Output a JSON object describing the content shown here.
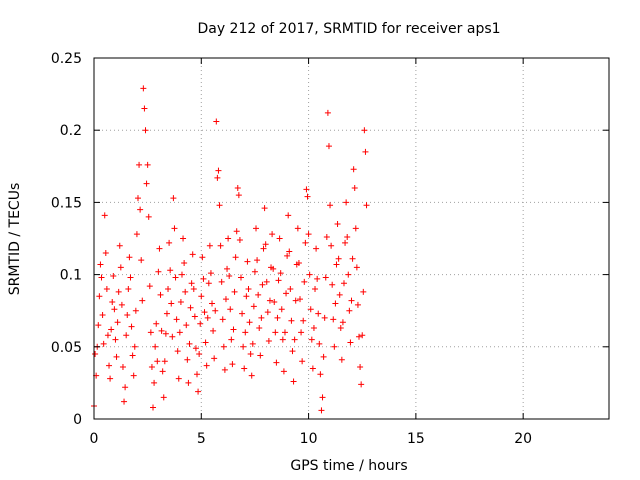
{
  "chart_data": {
    "type": "scatter",
    "title": "Day 212 of 2017, SRMTID for receiver aps1",
    "xlabel": "GPS time / hours",
    "ylabel": "SRMTID / TECUs",
    "xlim": [
      0,
      24
    ],
    "ylim": [
      0,
      0.25
    ],
    "xticks": [
      0,
      5,
      10,
      15,
      20
    ],
    "yticks": [
      0,
      0.05,
      0.1,
      0.15,
      0.2,
      0.25
    ],
    "xtick_labels": [
      "0",
      "5",
      "10",
      "15",
      "20"
    ],
    "ytick_labels": [
      "0",
      "0.05",
      "0.1",
      "0.15",
      "0.2",
      "0.25"
    ],
    "grid": true,
    "marker": "plus",
    "color": "#ff0000",
    "data_span_hours": [
      0,
      12.7
    ],
    "points": [
      [
        0.0,
        0.009
      ],
      [
        0.05,
        0.045
      ],
      [
        0.1,
        0.03
      ],
      [
        0.15,
        0.05
      ],
      [
        0.2,
        0.065
      ],
      [
        0.25,
        0.085
      ],
      [
        0.3,
        0.107
      ],
      [
        0.35,
        0.098
      ],
      [
        0.4,
        0.072
      ],
      [
        0.45,
        0.052
      ],
      [
        0.5,
        0.141
      ],
      [
        0.55,
        0.115
      ],
      [
        0.6,
        0.09
      ],
      [
        0.65,
        0.058
      ],
      [
        0.7,
        0.037
      ],
      [
        0.75,
        0.028
      ],
      [
        0.8,
        0.062
      ],
      [
        0.85,
        0.081
      ],
      [
        0.9,
        0.099
      ],
      [
        0.95,
        0.076
      ],
      [
        1.0,
        0.055
      ],
      [
        1.05,
        0.043
      ],
      [
        1.1,
        0.067
      ],
      [
        1.15,
        0.088
      ],
      [
        1.2,
        0.12
      ],
      [
        1.25,
        0.105
      ],
      [
        1.3,
        0.079
      ],
      [
        1.35,
        0.036
      ],
      [
        1.4,
        0.012
      ],
      [
        1.45,
        0.022
      ],
      [
        1.5,
        0.058
      ],
      [
        1.55,
        0.072
      ],
      [
        1.6,
        0.09
      ],
      [
        1.65,
        0.112
      ],
      [
        1.7,
        0.098
      ],
      [
        1.75,
        0.064
      ],
      [
        1.8,
        0.044
      ],
      [
        1.85,
        0.03
      ],
      [
        1.9,
        0.05
      ],
      [
        1.95,
        0.075
      ],
      [
        2.0,
        0.128
      ],
      [
        2.05,
        0.153
      ],
      [
        2.1,
        0.176
      ],
      [
        2.15,
        0.145
      ],
      [
        2.2,
        0.11
      ],
      [
        2.25,
        0.082
      ],
      [
        2.3,
        0.229
      ],
      [
        2.35,
        0.215
      ],
      [
        2.4,
        0.2
      ],
      [
        2.45,
        0.163
      ],
      [
        2.5,
        0.176
      ],
      [
        2.55,
        0.14
      ],
      [
        2.6,
        0.092
      ],
      [
        2.65,
        0.06
      ],
      [
        2.7,
        0.036
      ],
      [
        2.75,
        0.008
      ],
      [
        2.8,
        0.025
      ],
      [
        2.85,
        0.05
      ],
      [
        2.9,
        0.066
      ],
      [
        2.95,
        0.04
      ],
      [
        3.0,
        0.102
      ],
      [
        3.05,
        0.118
      ],
      [
        3.1,
        0.086
      ],
      [
        3.15,
        0.061
      ],
      [
        3.2,
        0.033
      ],
      [
        3.25,
        0.015
      ],
      [
        3.3,
        0.04
      ],
      [
        3.35,
        0.059
      ],
      [
        3.4,
        0.073
      ],
      [
        3.45,
        0.09
      ],
      [
        3.5,
        0.122
      ],
      [
        3.55,
        0.103
      ],
      [
        3.6,
        0.08
      ],
      [
        3.65,
        0.057
      ],
      [
        3.7,
        0.153
      ],
      [
        3.75,
        0.132
      ],
      [
        3.8,
        0.098
      ],
      [
        3.85,
        0.069
      ],
      [
        3.9,
        0.047
      ],
      [
        3.95,
        0.028
      ],
      [
        4.0,
        0.06
      ],
      [
        4.05,
        0.081
      ],
      [
        4.1,
        0.1
      ],
      [
        4.15,
        0.125
      ],
      [
        4.2,
        0.108
      ],
      [
        4.25,
        0.088
      ],
      [
        4.3,
        0.065
      ],
      [
        4.35,
        0.041
      ],
      [
        4.4,
        0.025
      ],
      [
        4.45,
        0.052
      ],
      [
        4.5,
        0.077
      ],
      [
        4.55,
        0.094
      ],
      [
        4.6,
        0.114
      ],
      [
        4.65,
        0.09
      ],
      [
        4.7,
        0.071
      ],
      [
        4.75,
        0.049
      ],
      [
        4.8,
        0.031
      ],
      [
        4.85,
        0.019
      ],
      [
        4.9,
        0.045
      ],
      [
        4.95,
        0.066
      ],
      [
        5.0,
        0.085
      ],
      [
        5.05,
        0.112
      ],
      [
        5.1,
        0.097
      ],
      [
        5.15,
        0.074
      ],
      [
        5.2,
        0.053
      ],
      [
        5.25,
        0.037
      ],
      [
        5.3,
        0.07
      ],
      [
        5.35,
        0.094
      ],
      [
        5.4,
        0.12
      ],
      [
        5.45,
        0.101
      ],
      [
        5.5,
        0.08
      ],
      [
        5.55,
        0.061
      ],
      [
        5.6,
        0.042
      ],
      [
        5.65,
        0.075
      ],
      [
        5.7,
        0.206
      ],
      [
        5.75,
        0.167
      ],
      [
        5.8,
        0.172
      ],
      [
        5.85,
        0.148
      ],
      [
        5.9,
        0.12
      ],
      [
        5.95,
        0.095
      ],
      [
        6.0,
        0.069
      ],
      [
        6.05,
        0.05
      ],
      [
        6.1,
        0.034
      ],
      [
        6.15,
        0.083
      ],
      [
        6.2,
        0.104
      ],
      [
        6.25,
        0.125
      ],
      [
        6.3,
        0.099
      ],
      [
        6.35,
        0.076
      ],
      [
        6.4,
        0.055
      ],
      [
        6.45,
        0.038
      ],
      [
        6.5,
        0.062
      ],
      [
        6.55,
        0.088
      ],
      [
        6.6,
        0.112
      ],
      [
        6.65,
        0.13
      ],
      [
        6.7,
        0.16
      ],
      [
        6.75,
        0.155
      ],
      [
        6.8,
        0.124
      ],
      [
        6.85,
        0.098
      ],
      [
        6.9,
        0.073
      ],
      [
        6.95,
        0.05
      ],
      [
        7.0,
        0.035
      ],
      [
        7.05,
        0.06
      ],
      [
        7.1,
        0.085
      ],
      [
        7.15,
        0.109
      ],
      [
        7.2,
        0.09
      ],
      [
        7.25,
        0.067
      ],
      [
        7.3,
        0.045
      ],
      [
        7.35,
        0.03
      ],
      [
        7.4,
        0.052
      ],
      [
        7.45,
        0.078
      ],
      [
        7.5,
        0.102
      ],
      [
        7.55,
        0.132
      ],
      [
        7.6,
        0.11
      ],
      [
        7.65,
        0.086
      ],
      [
        7.7,
        0.063
      ],
      [
        7.75,
        0.044
      ],
      [
        7.8,
        0.07
      ],
      [
        7.85,
        0.093
      ],
      [
        7.9,
        0.118
      ],
      [
        7.95,
        0.146
      ],
      [
        8.0,
        0.121
      ],
      [
        8.05,
        0.095
      ],
      [
        8.1,
        0.074
      ],
      [
        8.15,
        0.054
      ],
      [
        8.2,
        0.082
      ],
      [
        8.25,
        0.105
      ],
      [
        8.3,
        0.128
      ],
      [
        8.35,
        0.104
      ],
      [
        8.4,
        0.081
      ],
      [
        8.45,
        0.06
      ],
      [
        8.5,
        0.039
      ],
      [
        8.55,
        0.07
      ],
      [
        8.6,
        0.096
      ],
      [
        8.65,
        0.125
      ],
      [
        8.7,
        0.101
      ],
      [
        8.75,
        0.076
      ],
      [
        8.8,
        0.055
      ],
      [
        8.85,
        0.033
      ],
      [
        8.9,
        0.06
      ],
      [
        8.95,
        0.087
      ],
      [
        9.0,
        0.113
      ],
      [
        9.05,
        0.141
      ],
      [
        9.1,
        0.116
      ],
      [
        9.15,
        0.09
      ],
      [
        9.2,
        0.068
      ],
      [
        9.25,
        0.047
      ],
      [
        9.3,
        0.026
      ],
      [
        9.35,
        0.055
      ],
      [
        9.4,
        0.082
      ],
      [
        9.45,
        0.107
      ],
      [
        9.5,
        0.132
      ],
      [
        9.55,
        0.108
      ],
      [
        9.6,
        0.083
      ],
      [
        9.65,
        0.06
      ],
      [
        9.7,
        0.04
      ],
      [
        9.75,
        0.068
      ],
      [
        9.8,
        0.095
      ],
      [
        9.85,
        0.122
      ],
      [
        9.9,
        0.159
      ],
      [
        9.95,
        0.154
      ],
      [
        10.0,
        0.128
      ],
      [
        10.05,
        0.1
      ],
      [
        10.1,
        0.076
      ],
      [
        10.15,
        0.055
      ],
      [
        10.2,
        0.035
      ],
      [
        10.25,
        0.063
      ],
      [
        10.3,
        0.09
      ],
      [
        10.35,
        0.118
      ],
      [
        10.4,
        0.097
      ],
      [
        10.45,
        0.073
      ],
      [
        10.5,
        0.052
      ],
      [
        10.55,
        0.031
      ],
      [
        10.6,
        0.006
      ],
      [
        10.65,
        0.015
      ],
      [
        10.7,
        0.043
      ],
      [
        10.75,
        0.07
      ],
      [
        10.8,
        0.098
      ],
      [
        10.85,
        0.126
      ],
      [
        10.9,
        0.212
      ],
      [
        10.95,
        0.189
      ],
      [
        11.0,
        0.148
      ],
      [
        11.05,
        0.12
      ],
      [
        11.1,
        0.093
      ],
      [
        11.15,
        0.069
      ],
      [
        11.2,
        0.05
      ],
      [
        11.25,
        0.08
      ],
      [
        11.3,
        0.107
      ],
      [
        11.35,
        0.135
      ],
      [
        11.4,
        0.111
      ],
      [
        11.45,
        0.086
      ],
      [
        11.5,
        0.063
      ],
      [
        11.55,
        0.041
      ],
      [
        11.6,
        0.067
      ],
      [
        11.65,
        0.094
      ],
      [
        11.7,
        0.122
      ],
      [
        11.75,
        0.15
      ],
      [
        11.8,
        0.126
      ],
      [
        11.85,
        0.1
      ],
      [
        11.9,
        0.075
      ],
      [
        11.95,
        0.053
      ],
      [
        12.0,
        0.082
      ],
      [
        12.05,
        0.111
      ],
      [
        12.1,
        0.173
      ],
      [
        12.15,
        0.16
      ],
      [
        12.2,
        0.132
      ],
      [
        12.25,
        0.105
      ],
      [
        12.3,
        0.079
      ],
      [
        12.35,
        0.057
      ],
      [
        12.4,
        0.036
      ],
      [
        12.45,
        0.024
      ],
      [
        12.5,
        0.058
      ],
      [
        12.55,
        0.088
      ],
      [
        12.6,
        0.2
      ],
      [
        12.65,
        0.185
      ],
      [
        12.7,
        0.148
      ]
    ]
  }
}
